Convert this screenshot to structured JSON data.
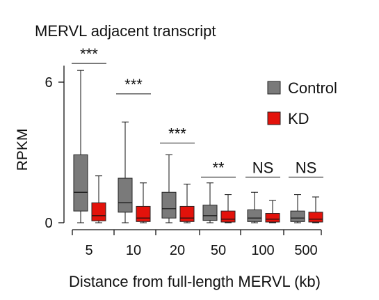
{
  "chart_data": {
    "type": "box",
    "title": "MERVL adjacent transcript",
    "xlabel": "Distance from full-length MERVL (kb)",
    "ylabel": "RPKM",
    "ylim": [
      0,
      6.7
    ],
    "yticks": [
      0,
      6
    ],
    "categories": [
      "5",
      "10",
      "20",
      "50",
      "100",
      "500"
    ],
    "legend_position": "top-right",
    "series": [
      {
        "name": "Control",
        "color": "#7a7a7a",
        "boxes": [
          {
            "min": 0.0,
            "q1": 0.5,
            "median": 1.3,
            "q3": 2.9,
            "max": 6.5
          },
          {
            "min": 0.0,
            "q1": 0.45,
            "median": 0.85,
            "q3": 1.9,
            "max": 4.3
          },
          {
            "min": 0.0,
            "q1": 0.2,
            "median": 0.6,
            "q3": 1.3,
            "max": 2.9
          },
          {
            "min": 0.0,
            "q1": 0.1,
            "median": 0.3,
            "q3": 0.75,
            "max": 1.7
          },
          {
            "min": 0.0,
            "q1": 0.05,
            "median": 0.2,
            "q3": 0.55,
            "max": 1.3
          },
          {
            "min": 0.0,
            "q1": 0.05,
            "median": 0.2,
            "q3": 0.5,
            "max": 1.2
          }
        ]
      },
      {
        "name": "KD",
        "color": "#e3120b",
        "boxes": [
          {
            "min": 0.0,
            "q1": 0.08,
            "median": 0.3,
            "q3": 0.85,
            "max": 2.0
          },
          {
            "min": 0.0,
            "q1": 0.05,
            "median": 0.2,
            "q3": 0.7,
            "max": 1.7
          },
          {
            "min": 0.0,
            "q1": 0.05,
            "median": 0.2,
            "q3": 0.7,
            "max": 1.65
          },
          {
            "min": 0.0,
            "q1": 0.03,
            "median": 0.15,
            "q3": 0.5,
            "max": 1.2
          },
          {
            "min": 0.0,
            "q1": 0.03,
            "median": 0.15,
            "q3": 0.4,
            "max": 0.95
          },
          {
            "min": 0.0,
            "q1": 0.03,
            "median": 0.15,
            "q3": 0.45,
            "max": 1.1
          }
        ]
      }
    ],
    "annotations": [
      "***",
      "***",
      "***",
      "**",
      "NS",
      "NS"
    ],
    "annotation_levels": [
      6.8,
      5.5,
      3.4,
      1.95,
      1.95,
      1.95
    ]
  }
}
